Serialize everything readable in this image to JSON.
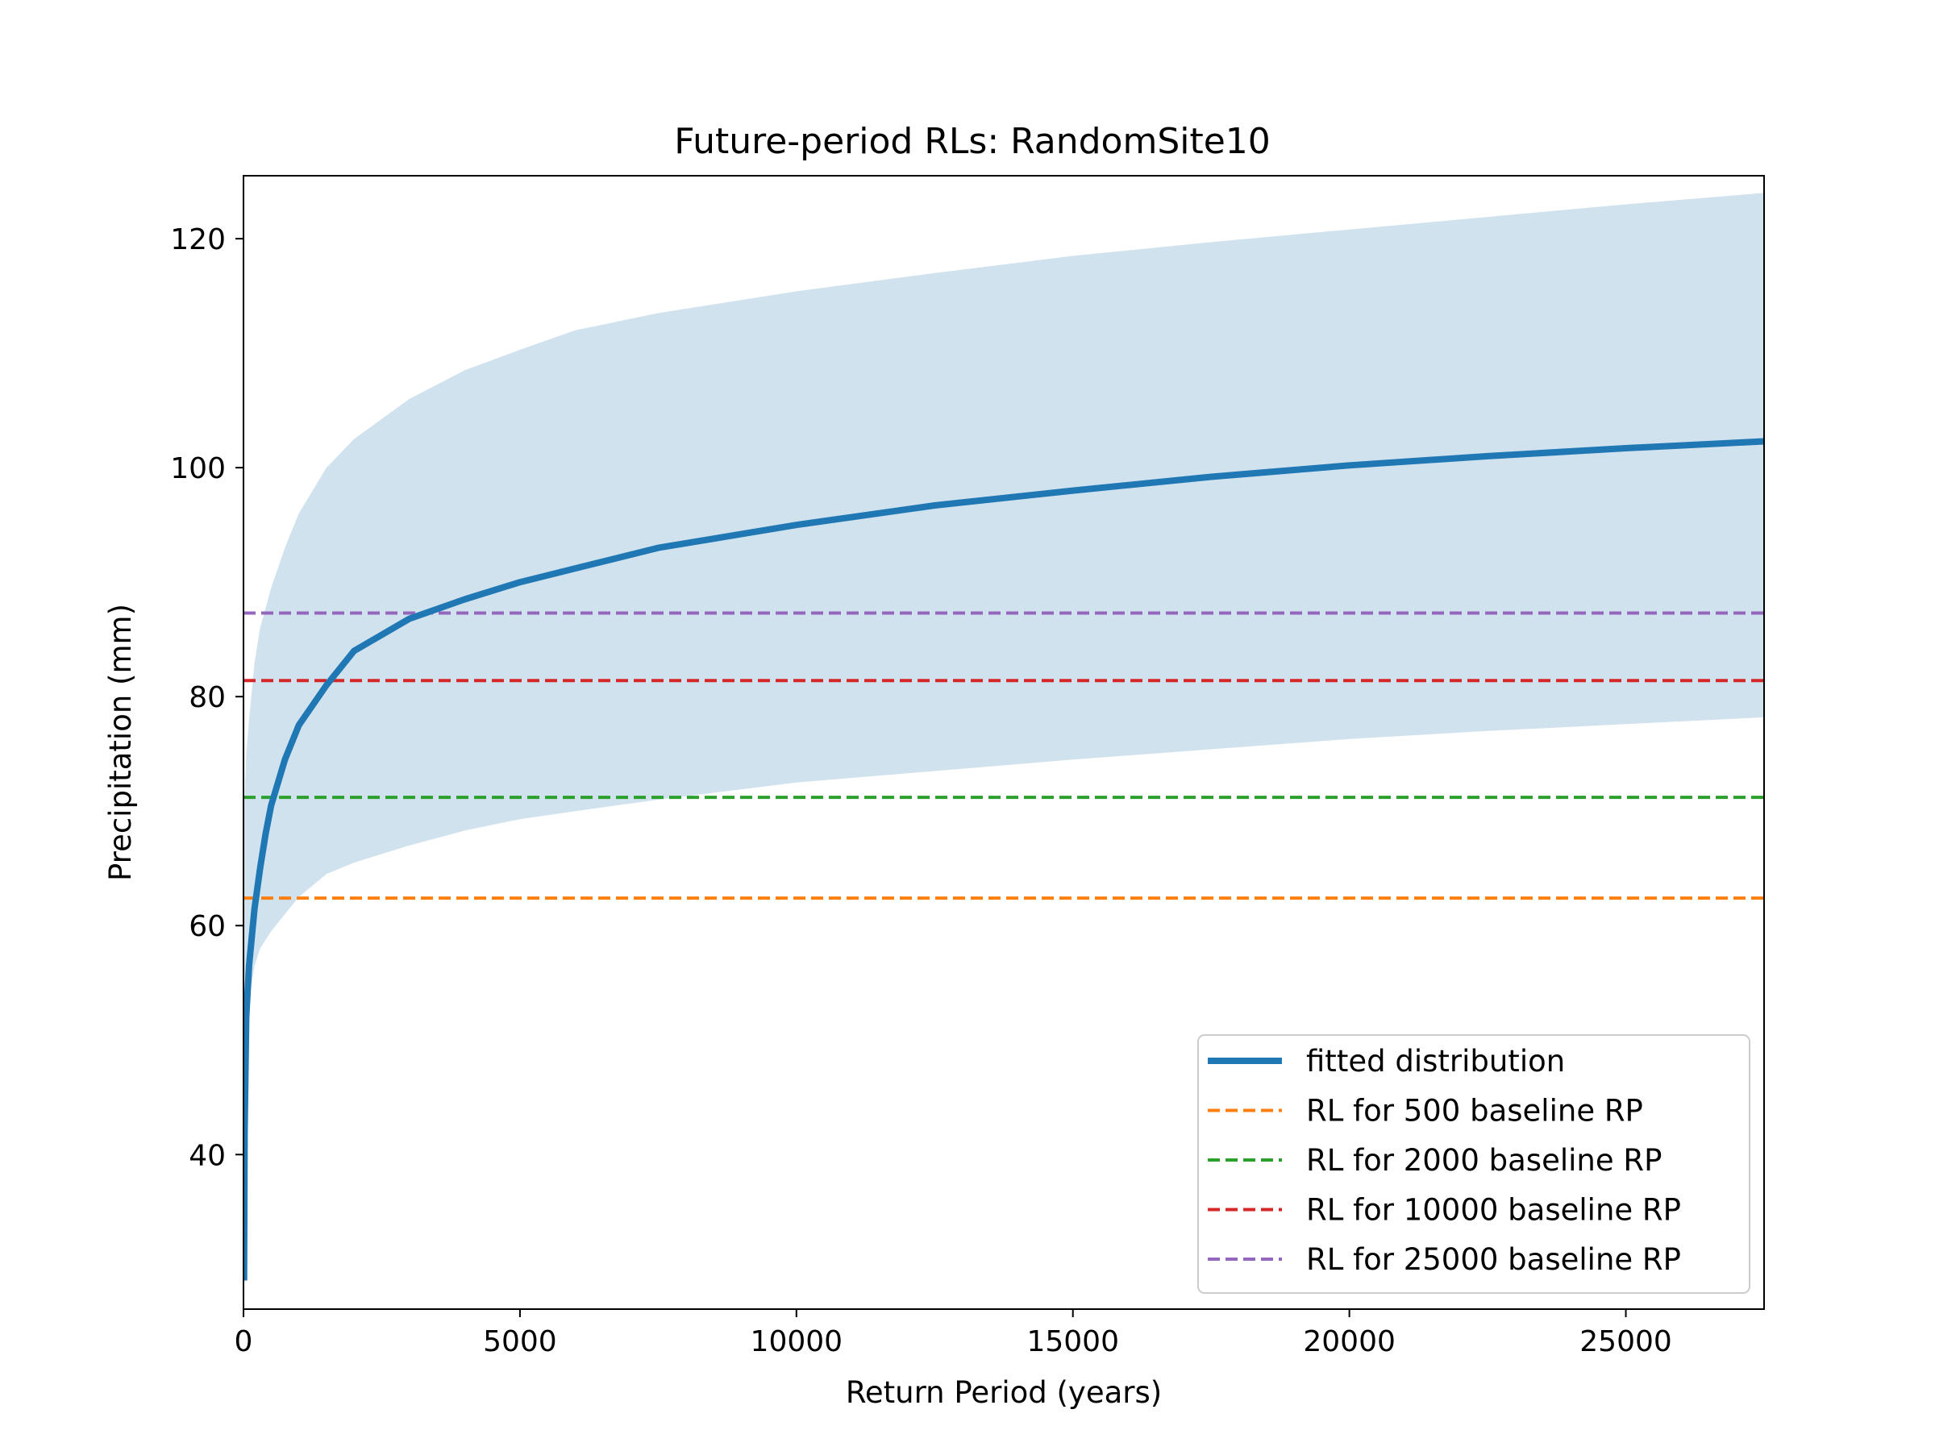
{
  "chart_data": {
    "type": "line",
    "title": "Future-period RLs: RandomSite10",
    "xlabel": "Return Period (years)",
    "ylabel": "Precipitation (mm)",
    "xlim": [
      0,
      27500
    ],
    "ylim": [
      26.5,
      125.5
    ],
    "xticks": [
      0,
      5000,
      10000,
      15000,
      20000,
      25000
    ],
    "yticks": [
      40,
      60,
      80,
      100,
      120
    ],
    "grid": false,
    "legend_position": "lower right",
    "series": [
      {
        "name": "fitted distribution",
        "color": "#1f77b4",
        "style": "solid",
        "x": [
          10,
          20,
          50,
          100,
          200,
          300,
          400,
          500,
          750,
          1000,
          1500,
          2000,
          3000,
          4000,
          5000,
          6000,
          7500,
          10000,
          12500,
          15000,
          17500,
          20000,
          22500,
          25000,
          27500
        ],
        "y": [
          29,
          42,
          52,
          56.5,
          61.5,
          65,
          68,
          70.5,
          74.5,
          77.5,
          81,
          84,
          86.8,
          88.5,
          90,
          91.2,
          93,
          95,
          96.7,
          98,
          99.2,
          100.2,
          101,
          101.7,
          102.3
        ]
      },
      {
        "name": "confidence band upper",
        "color": "#d0e2ee",
        "x": [
          10,
          50,
          100,
          200,
          300,
          500,
          750,
          1000,
          1500,
          2000,
          3000,
          4000,
          5000,
          6000,
          7500,
          10000,
          12500,
          15000,
          17500,
          20000,
          22500,
          25000,
          27500
        ],
        "y": [
          70,
          75,
          78,
          83,
          86,
          89.5,
          93,
          96,
          100,
          102.5,
          106,
          108.5,
          110.3,
          112,
          113.5,
          115.4,
          117,
          118.5,
          119.7,
          120.8,
          121.9,
          123,
          124
        ]
      },
      {
        "name": "confidence band lower",
        "color": "#d0e2ee",
        "x": [
          10,
          50,
          100,
          200,
          300,
          500,
          750,
          1000,
          1500,
          2000,
          3000,
          4000,
          5000,
          6000,
          7500,
          10000,
          12500,
          15000,
          17500,
          20000,
          22500,
          25000,
          27500
        ],
        "y": [
          47,
          51,
          53.5,
          56.5,
          58,
          59.5,
          61,
          62.5,
          64.5,
          65.5,
          67,
          68.3,
          69.3,
          70,
          71,
          72.5,
          73.5,
          74.5,
          75.4,
          76.3,
          77,
          77.6,
          78.2
        ]
      },
      {
        "name": "RL for 500 baseline RP",
        "color": "#ff7f0e",
        "style": "dashed",
        "x": [
          0,
          27500
        ],
        "y": [
          62.4,
          62.4
        ]
      },
      {
        "name": "RL for 2000 baseline RP",
        "color": "#2ca02c",
        "style": "dashed",
        "x": [
          0,
          27500
        ],
        "y": [
          71.2,
          71.2
        ]
      },
      {
        "name": "RL for 10000 baseline RP",
        "color": "#d62728",
        "style": "dashed",
        "x": [
          0,
          27500
        ],
        "y": [
          81.4,
          81.4
        ]
      },
      {
        "name": "RL for 25000 baseline RP",
        "color": "#9467bd",
        "style": "dashed",
        "x": [
          0,
          27500
        ],
        "y": [
          87.3,
          87.3
        ]
      }
    ],
    "legend": [
      {
        "label": "fitted distribution",
        "color": "#1f77b4",
        "style": "solid"
      },
      {
        "label": "RL for 500 baseline RP",
        "color": "#ff7f0e",
        "style": "dashed"
      },
      {
        "label": "RL for 2000 baseline RP",
        "color": "#2ca02c",
        "style": "dashed"
      },
      {
        "label": "RL for 10000 baseline RP",
        "color": "#d62728",
        "style": "dashed"
      },
      {
        "label": "RL for 25000 baseline RP",
        "color": "#9467bd",
        "style": "dashed"
      }
    ]
  }
}
